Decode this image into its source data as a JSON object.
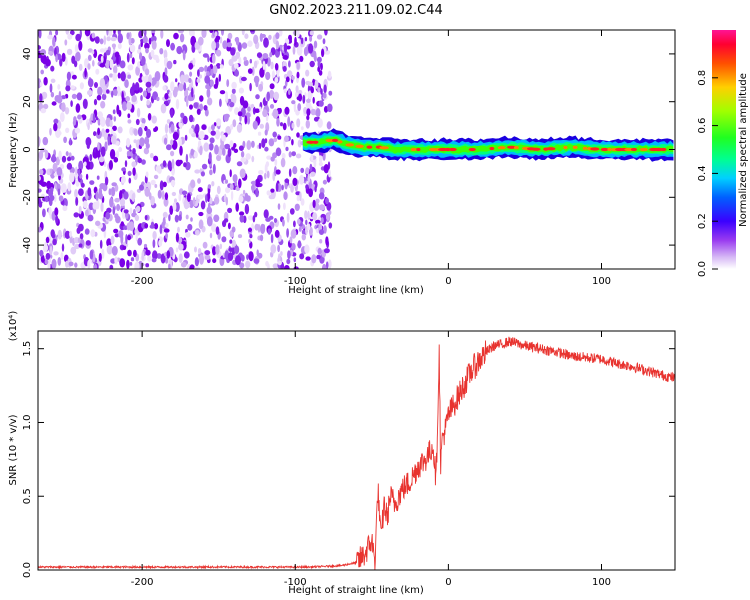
{
  "title": "GN02.2023.211.09.02.C44",
  "chart_data": [
    {
      "type": "heatmap",
      "title": "",
      "xlabel": "Height of straight line (km)",
      "ylabel": "Frequency (Hz)",
      "xlim": [
        -268,
        148
      ],
      "ylim": [
        -50,
        50
      ],
      "x_ticks": [
        "-200",
        "-100",
        "0",
        "100"
      ],
      "x_tick_values": [
        -200,
        -100,
        0,
        100
      ],
      "y_ticks": [
        "-40",
        "-20",
        "0",
        "20",
        "40"
      ],
      "y_tick_values": [
        -40,
        -20,
        0,
        20,
        40
      ],
      "noise_region_x": [
        -268,
        -77
      ],
      "signal_ridge": {
        "x": [
          -95,
          -85,
          -75,
          -65,
          -55,
          -45,
          -35,
          -25,
          -15,
          0,
          20,
          40,
          60,
          80,
          100,
          120,
          148
        ],
        "y": [
          3,
          3,
          4,
          2,
          1,
          1,
          0,
          0,
          0,
          0,
          0,
          1,
          0,
          1,
          0,
          0,
          0
        ]
      },
      "colorbar": {
        "label": "Normalized spectral amplitude",
        "range": [
          0,
          1
        ],
        "ticks": [
          "0.0",
          "0.2",
          "0.4",
          "0.6",
          "0.8"
        ],
        "tick_values": [
          0.0,
          0.2,
          0.4,
          0.6,
          0.8
        ],
        "colors": [
          "#ffffff",
          "#d6b8f5",
          "#7a00e6",
          "#0000ff",
          "#00c8ff",
          "#00ff80",
          "#40ff00",
          "#ffff00",
          "#ff8000",
          "#ff0000",
          "#ff1493"
        ]
      },
      "grid": false
    },
    {
      "type": "line",
      "title": "",
      "xlabel": "Height of straight line (km)",
      "ylabel": "SNR (10 * v/v)",
      "y_multiplier": "(x10⁴)",
      "xlim": [
        -268,
        148
      ],
      "ylim": [
        0,
        1.62
      ],
      "x_ticks": [
        "-200",
        "-100",
        "0",
        "100"
      ],
      "x_tick_values": [
        -200,
        -100,
        0,
        100
      ],
      "y_ticks": [
        "0.0",
        "0.5",
        "1.0",
        "1.5"
      ],
      "y_tick_values": [
        0.0,
        0.5,
        1.0,
        1.5
      ],
      "color": "#e8332f",
      "series": [
        {
          "values_x": [
            -268,
            -240,
            -200,
            -160,
            -120,
            -90,
            -70,
            -60,
            -55,
            -50,
            -48,
            -46,
            -44,
            -42,
            -40,
            -38,
            -35,
            -30,
            -25,
            -20,
            -15,
            -12,
            -10,
            -8,
            -6,
            -5,
            -4,
            -2,
            0,
            5,
            10,
            15,
            20,
            25,
            30,
            35,
            40,
            50,
            60,
            70,
            80,
            90,
            100,
            110,
            120,
            130,
            140,
            148
          ],
          "values_y": [
            0.02,
            0.02,
            0.02,
            0.02,
            0.02,
            0.02,
            0.03,
            0.05,
            0.1,
            0.2,
            0.05,
            0.55,
            0.2,
            0.45,
            0.35,
            0.5,
            0.45,
            0.55,
            0.6,
            0.7,
            0.75,
            0.8,
            0.85,
            0.6,
            1.47,
            0.7,
            0.9,
            0.95,
            1.05,
            1.15,
            1.25,
            1.35,
            1.42,
            1.48,
            1.52,
            1.53,
            1.55,
            1.52,
            1.5,
            1.48,
            1.45,
            1.44,
            1.43,
            1.4,
            1.38,
            1.35,
            1.32,
            1.3
          ]
        }
      ],
      "grid": false
    }
  ]
}
